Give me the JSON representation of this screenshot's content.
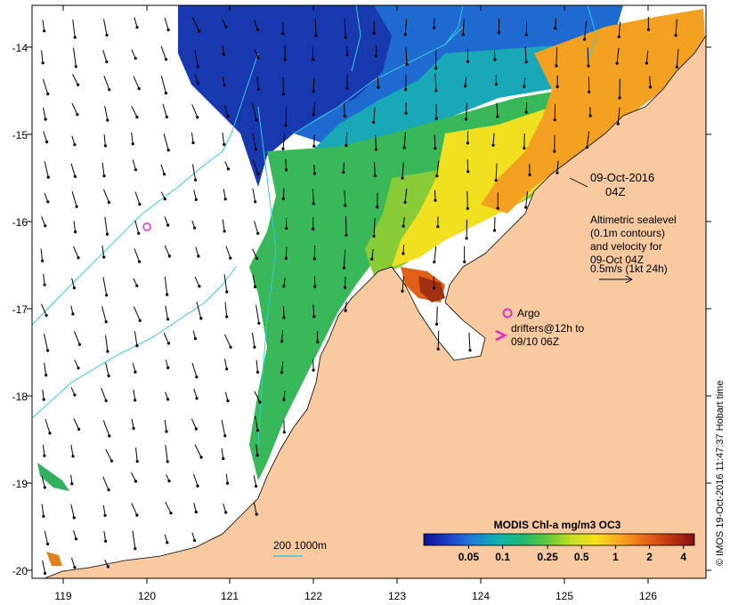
{
  "map": {
    "lon_range": [
      118.7,
      126.7
    ],
    "lat_range": [
      -20.1,
      -13.6
    ],
    "lon_ticks": [
      "119",
      "120",
      "121",
      "122",
      "123",
      "124",
      "125",
      "126"
    ],
    "lat_ticks": [
      "-14",
      "-15",
      "-16",
      "-17",
      "-18",
      "-19",
      "-20"
    ],
    "colors": {
      "land": "#f9c9a0",
      "ocean_blank": "#ffffff",
      "contour": "#33ccdd",
      "argo": "#dd33cc",
      "drifter": "#ee22cc",
      "coast": "#000000"
    }
  },
  "annotations": {
    "datetime_line1": "09-Oct-2016",
    "datetime_line2": "04Z",
    "info": [
      "Altimetric sealevel",
      "(0.1m contours)",
      "and velocity for",
      "09-Oct 04Z",
      "0.5m/s (1kt 24h)"
    ],
    "argo_label": "Argo",
    "drifter_label_line1": "drifters@12h to",
    "drifter_label_line2": "09/10 06Z",
    "scale_bar": "200  1000m",
    "credit": "© IMOS 19-Oct-2016 11:47:37 Hobart time"
  },
  "colorbar": {
    "title": "MODIS Chl-a mg/m3 OC3",
    "labels": [
      "0.05",
      "0.1",
      "0.25",
      "0.5",
      "1",
      "2",
      "4"
    ],
    "log_range": [
      0.02,
      5
    ],
    "stops": [
      "#101090",
      "#1f3fc8",
      "#1c7fd8",
      "#10b0b0",
      "#20b870",
      "#60c840",
      "#c8e020",
      "#f8e018",
      "#f8a820",
      "#e86818",
      "#c03810",
      "#801010"
    ]
  },
  "chart_data": {
    "type": "map",
    "variable": "MODIS Chl-a mg/m3 OC3",
    "argo_floats": [
      {
        "lon": 119.95,
        "lat": -16.08
      },
      {
        "lon": 124.3,
        "lat": -17.05
      }
    ],
    "drifters": [
      {
        "lon": 124.2,
        "lat": -17.3
      }
    ]
  }
}
